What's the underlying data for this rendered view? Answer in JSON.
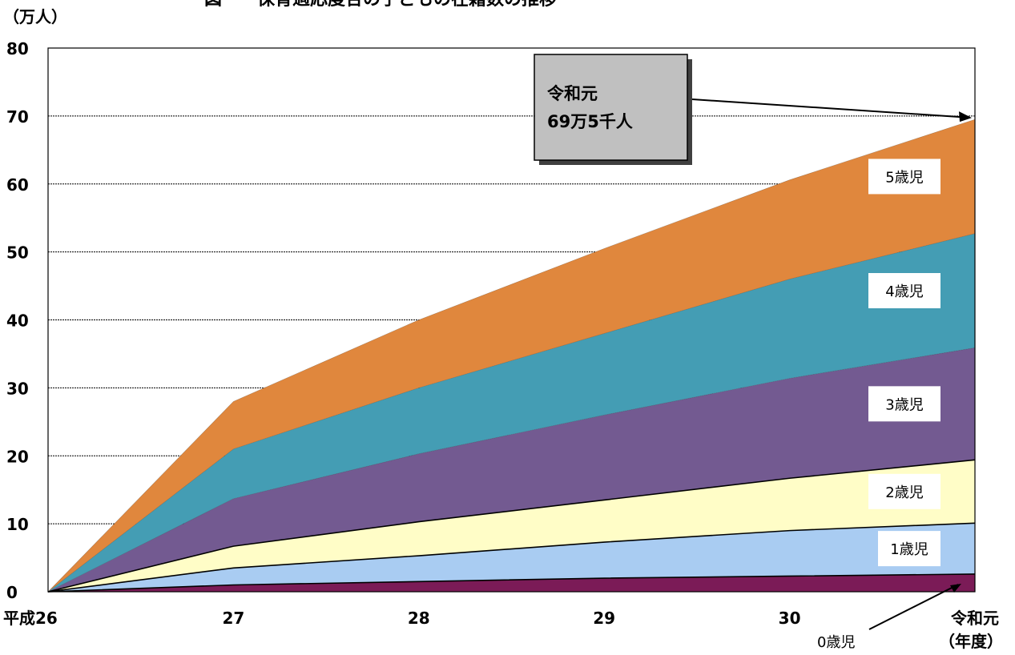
{
  "chart_data": {
    "type": "area",
    "title": "図　　保育適応度合の子どもの在籍数の推移",
    "ylabel": "（万人）",
    "xlabel": "（年度）",
    "ylim": [
      0,
      80
    ],
    "yticks": [
      0,
      10,
      20,
      30,
      40,
      50,
      60,
      70,
      80
    ],
    "categories": [
      "平成26",
      "27",
      "28",
      "29",
      "30",
      "令和元"
    ],
    "stacked": true,
    "grid": true,
    "series": [
      {
        "name": "0歳児",
        "values": [
          0,
          1.0,
          1.5,
          2.0,
          2.3,
          2.6
        ],
        "color": "#7b1b57"
      },
      {
        "name": "1歳児",
        "values": [
          0,
          2.5,
          3.8,
          5.3,
          6.7,
          7.5
        ],
        "color": "#a9ccf2"
      },
      {
        "name": "2歳児",
        "values": [
          0,
          3.2,
          5.0,
          6.2,
          7.7,
          9.3
        ],
        "color": "#fffdc7"
      },
      {
        "name": "3歳児",
        "values": [
          0,
          7.0,
          10.0,
          12.5,
          14.7,
          16.5
        ],
        "color": "#735a91"
      },
      {
        "name": "4歳児",
        "values": [
          0,
          7.3,
          9.7,
          12.0,
          14.6,
          16.8
        ],
        "color": "#449db4"
      },
      {
        "name": "5歳児",
        "values": [
          0,
          7.0,
          10.0,
          12.5,
          14.6,
          16.8
        ],
        "color": "#e0873d"
      }
    ],
    "annotation": {
      "line1": "令和元",
      "line2": "69万5千人"
    },
    "axis_color": "#000000",
    "grid_color": "#000000",
    "callout_fill": "#c0c0c0"
  }
}
